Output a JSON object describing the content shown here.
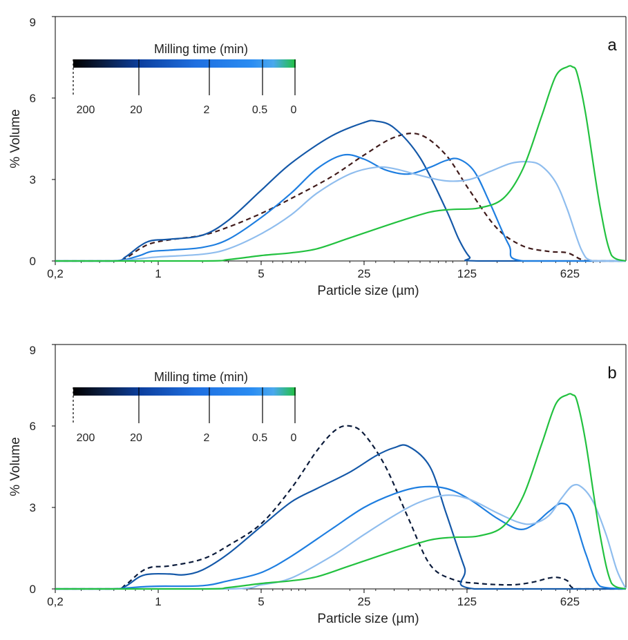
{
  "chart_data": [
    {
      "type": "line",
      "panel_label": "a",
      "xlabel": "Particle size (µm)",
      "ylabel": "% Volume",
      "x_scale": "log",
      "xlim": [
        0.2,
        1500
      ],
      "ylim": [
        0,
        9
      ],
      "x_ticks": [
        "0,2",
        "1",
        "5",
        "25",
        "125",
        "625"
      ],
      "y_ticks": [
        "0",
        "3",
        "6",
        "9"
      ],
      "legend": {
        "title": "Milling time (min)",
        "labels": [
          "200",
          "20",
          "2",
          "0.5",
          "0"
        ],
        "placement": "top-left"
      },
      "series": [
        {
          "color": "#3f1a1a",
          "dashed": true,
          "x": [
            0.2,
            0.5,
            0.6,
            0.75,
            0.9,
            1.2,
            2,
            3,
            5,
            8,
            15,
            25,
            40,
            60,
            90,
            130,
            200,
            300,
            450,
            600,
            750,
            900,
            1500
          ],
          "y": [
            0,
            0,
            0.1,
            0.45,
            0.65,
            0.78,
            0.95,
            1.25,
            1.75,
            2.3,
            3.1,
            3.9,
            4.55,
            4.65,
            3.9,
            2.6,
            1.2,
            0.55,
            0.35,
            0.3,
            0.05,
            0,
            0
          ]
        },
        {
          "color": "#1458a8",
          "dashed": false,
          "x": [
            0.2,
            0.5,
            0.6,
            0.75,
            0.9,
            1.2,
            2,
            3,
            5,
            8,
            15,
            25,
            30,
            40,
            60,
            90,
            110,
            130,
            150,
            1500
          ],
          "y": [
            0,
            0,
            0.15,
            0.55,
            0.75,
            0.8,
            0.95,
            1.5,
            2.6,
            3.6,
            4.6,
            5.1,
            5.15,
            4.9,
            3.8,
            1.9,
            0.8,
            0.15,
            0,
            0
          ]
        },
        {
          "color": "#1e7ee0",
          "dashed": false,
          "x": [
            0.2,
            0.5,
            0.6,
            0.75,
            0.9,
            1.2,
            2,
            3,
            5,
            8,
            12,
            18,
            25,
            35,
            50,
            70,
            90,
            110,
            140,
            180,
            240,
            300,
            1500
          ],
          "y": [
            0,
            0,
            0.05,
            0.2,
            0.35,
            0.4,
            0.5,
            0.8,
            1.6,
            2.5,
            3.4,
            3.9,
            3.75,
            3.35,
            3.2,
            3.45,
            3.7,
            3.75,
            3.3,
            2.1,
            0.6,
            0,
            0
          ]
        },
        {
          "color": "#8fbdee",
          "dashed": false,
          "x": [
            0.2,
            0.5,
            0.6,
            0.8,
            1,
            2,
            3,
            5,
            8,
            12,
            20,
            30,
            40,
            60,
            90,
            130,
            180,
            250,
            330,
            400,
            500,
            600,
            750,
            900,
            1500
          ],
          "y": [
            0,
            0,
            0.03,
            0.1,
            0.15,
            0.25,
            0.45,
            1.0,
            1.7,
            2.5,
            3.2,
            3.45,
            3.4,
            3.15,
            2.95,
            3.0,
            3.3,
            3.6,
            3.65,
            3.5,
            2.9,
            1.9,
            0.4,
            0,
            0
          ]
        },
        {
          "color": "#22c13f",
          "dashed": false,
          "x": [
            0.2,
            2,
            3,
            5,
            8,
            12,
            20,
            40,
            70,
            100,
            150,
            220,
            300,
            400,
            500,
            600,
            650,
            700,
            800,
            1000,
            1200,
            1500
          ],
          "y": [
            0,
            0,
            0.05,
            0.2,
            0.3,
            0.45,
            0.85,
            1.4,
            1.8,
            1.9,
            1.95,
            2.3,
            3.4,
            5.3,
            6.8,
            7.15,
            7.15,
            6.9,
            5.4,
            2.0,
            0.2,
            0
          ]
        }
      ]
    },
    {
      "type": "line",
      "panel_label": "b",
      "xlabel": "Particle size (µm)",
      "ylabel": "% Volume",
      "x_scale": "log",
      "xlim": [
        0.2,
        1500
      ],
      "ylim": [
        0,
        9
      ],
      "x_ticks": [
        "0,2",
        "1",
        "5",
        "25",
        "125",
        "625"
      ],
      "y_ticks": [
        "0",
        "3",
        "6",
        "9"
      ],
      "legend": {
        "title": "Milling time (min)",
        "labels": [
          "200",
          "20",
          "2",
          "0.5",
          "0"
        ],
        "placement": "top-left"
      },
      "series": [
        {
          "color": "#0a1a3a",
          "dashed": true,
          "x": [
            0.2,
            0.5,
            0.6,
            0.75,
            0.9,
            1.2,
            2,
            3,
            5,
            8,
            12,
            16,
            20,
            25,
            35,
            50,
            70,
            100,
            150,
            250,
            350,
            450,
            520,
            600,
            700,
            1500
          ],
          "y": [
            0,
            0,
            0.15,
            0.6,
            0.8,
            0.85,
            1.1,
            1.6,
            2.4,
            3.7,
            5.1,
            5.85,
            6.0,
            5.7,
            4.5,
            2.6,
            0.9,
            0.35,
            0.2,
            0.15,
            0.25,
            0.4,
            0.42,
            0.3,
            0,
            0
          ]
        },
        {
          "color": "#1458a8",
          "dashed": false,
          "x": [
            0.2,
            0.5,
            0.6,
            0.75,
            0.9,
            1.2,
            1.5,
            2,
            3,
            5,
            8,
            12,
            20,
            30,
            40,
            50,
            70,
            90,
            120,
            140,
            1500
          ],
          "y": [
            0,
            0,
            0.1,
            0.45,
            0.55,
            0.55,
            0.52,
            0.7,
            1.3,
            2.3,
            3.2,
            3.7,
            4.3,
            4.9,
            5.2,
            5.25,
            4.5,
            2.8,
            0.8,
            0,
            0
          ]
        },
        {
          "color": "#1e7ee0",
          "dashed": false,
          "x": [
            0.2,
            0.5,
            0.6,
            0.8,
            1,
            2,
            3,
            5,
            8,
            15,
            25,
            40,
            60,
            90,
            130,
            200,
            280,
            350,
            450,
            550,
            650,
            800,
            1000,
            1500
          ],
          "y": [
            0,
            0,
            0.03,
            0.08,
            0.1,
            0.12,
            0.3,
            0.6,
            1.2,
            2.2,
            3.0,
            3.5,
            3.75,
            3.7,
            3.3,
            2.6,
            2.2,
            2.35,
            2.85,
            3.15,
            2.8,
            1.3,
            0.1,
            0
          ]
        },
        {
          "color": "#8fbdee",
          "dashed": false,
          "x": [
            0.2,
            3,
            5,
            8,
            15,
            25,
            40,
            60,
            90,
            130,
            200,
            280,
            350,
            450,
            550,
            650,
            750,
            900,
            1100,
            1300,
            1500
          ],
          "y": [
            0,
            0,
            0.15,
            0.4,
            1.2,
            2.0,
            2.7,
            3.2,
            3.45,
            3.3,
            2.8,
            2.45,
            2.4,
            2.7,
            3.35,
            3.8,
            3.75,
            3.2,
            2.0,
            0.7,
            0
          ]
        },
        {
          "color": "#22c13f",
          "dashed": false,
          "x": [
            0.2,
            2,
            3,
            5,
            8,
            12,
            20,
            40,
            70,
            100,
            150,
            220,
            300,
            400,
            500,
            600,
            650,
            700,
            800,
            1000,
            1200,
            1500
          ],
          "y": [
            0,
            0,
            0.05,
            0.2,
            0.3,
            0.45,
            0.85,
            1.4,
            1.8,
            1.9,
            1.95,
            2.3,
            3.4,
            5.3,
            6.8,
            7.15,
            7.15,
            6.9,
            5.4,
            2.0,
            0.2,
            0
          ]
        }
      ]
    }
  ]
}
